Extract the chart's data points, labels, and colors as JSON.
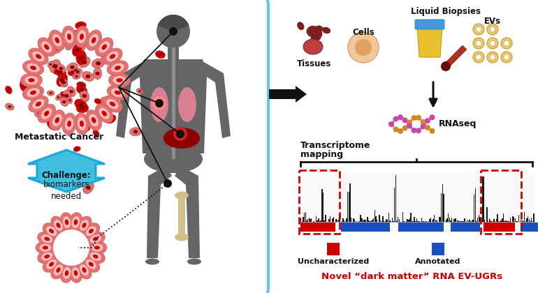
{
  "bg_color": "#ffffff",
  "left_box_edge": "#5BC8E8",
  "metastatic_cancer_text": "Metastatic Cancer",
  "challenge_box_color": "#40BFDE",
  "challenge_text_bold": "Challenge:",
  "challenge_text_normal": "biomarkers\nneeded",
  "tissues_label": "Tissues",
  "cells_label": "Cells",
  "liquid_biopsies_label": "Liquid Biopsies",
  "evs_label": "EVs",
  "rnaseq_label": "RNAseq",
  "transcriptome_label": "Transcriptome\nmapping",
  "uncharacterized_label": "Uncharacterized",
  "annotated_label": "Annotated",
  "dark_matter_label": "Novel “dark matter” RNA EV-UGRs",
  "red_color": "#CC0000",
  "blue_color": "#1B4FBE",
  "black": "#111111",
  "gray_body": "#656565",
  "pink_light": "#F5BBBB",
  "pink_dark": "#E57070",
  "pink_mid": "#EF9090",
  "red_cell": "#AA0000",
  "lung_pink": "#D98090",
  "liver_dark": "#8B0000",
  "bone_color": "#D4BF8A",
  "tissue_dark": "#7A2020",
  "tissue_med": "#B04040",
  "cell_outer": "#F2C49A",
  "cell_inner": "#E0A070",
  "urine_yellow": "#E8C030",
  "bottle_cap": "#4499DD",
  "blood_red": "#B03020",
  "ev_gold": "#E8C878",
  "rna_orange": "#D08820",
  "rna_pink": "#CC44AA",
  "challenge_border": "#1AA8D8"
}
